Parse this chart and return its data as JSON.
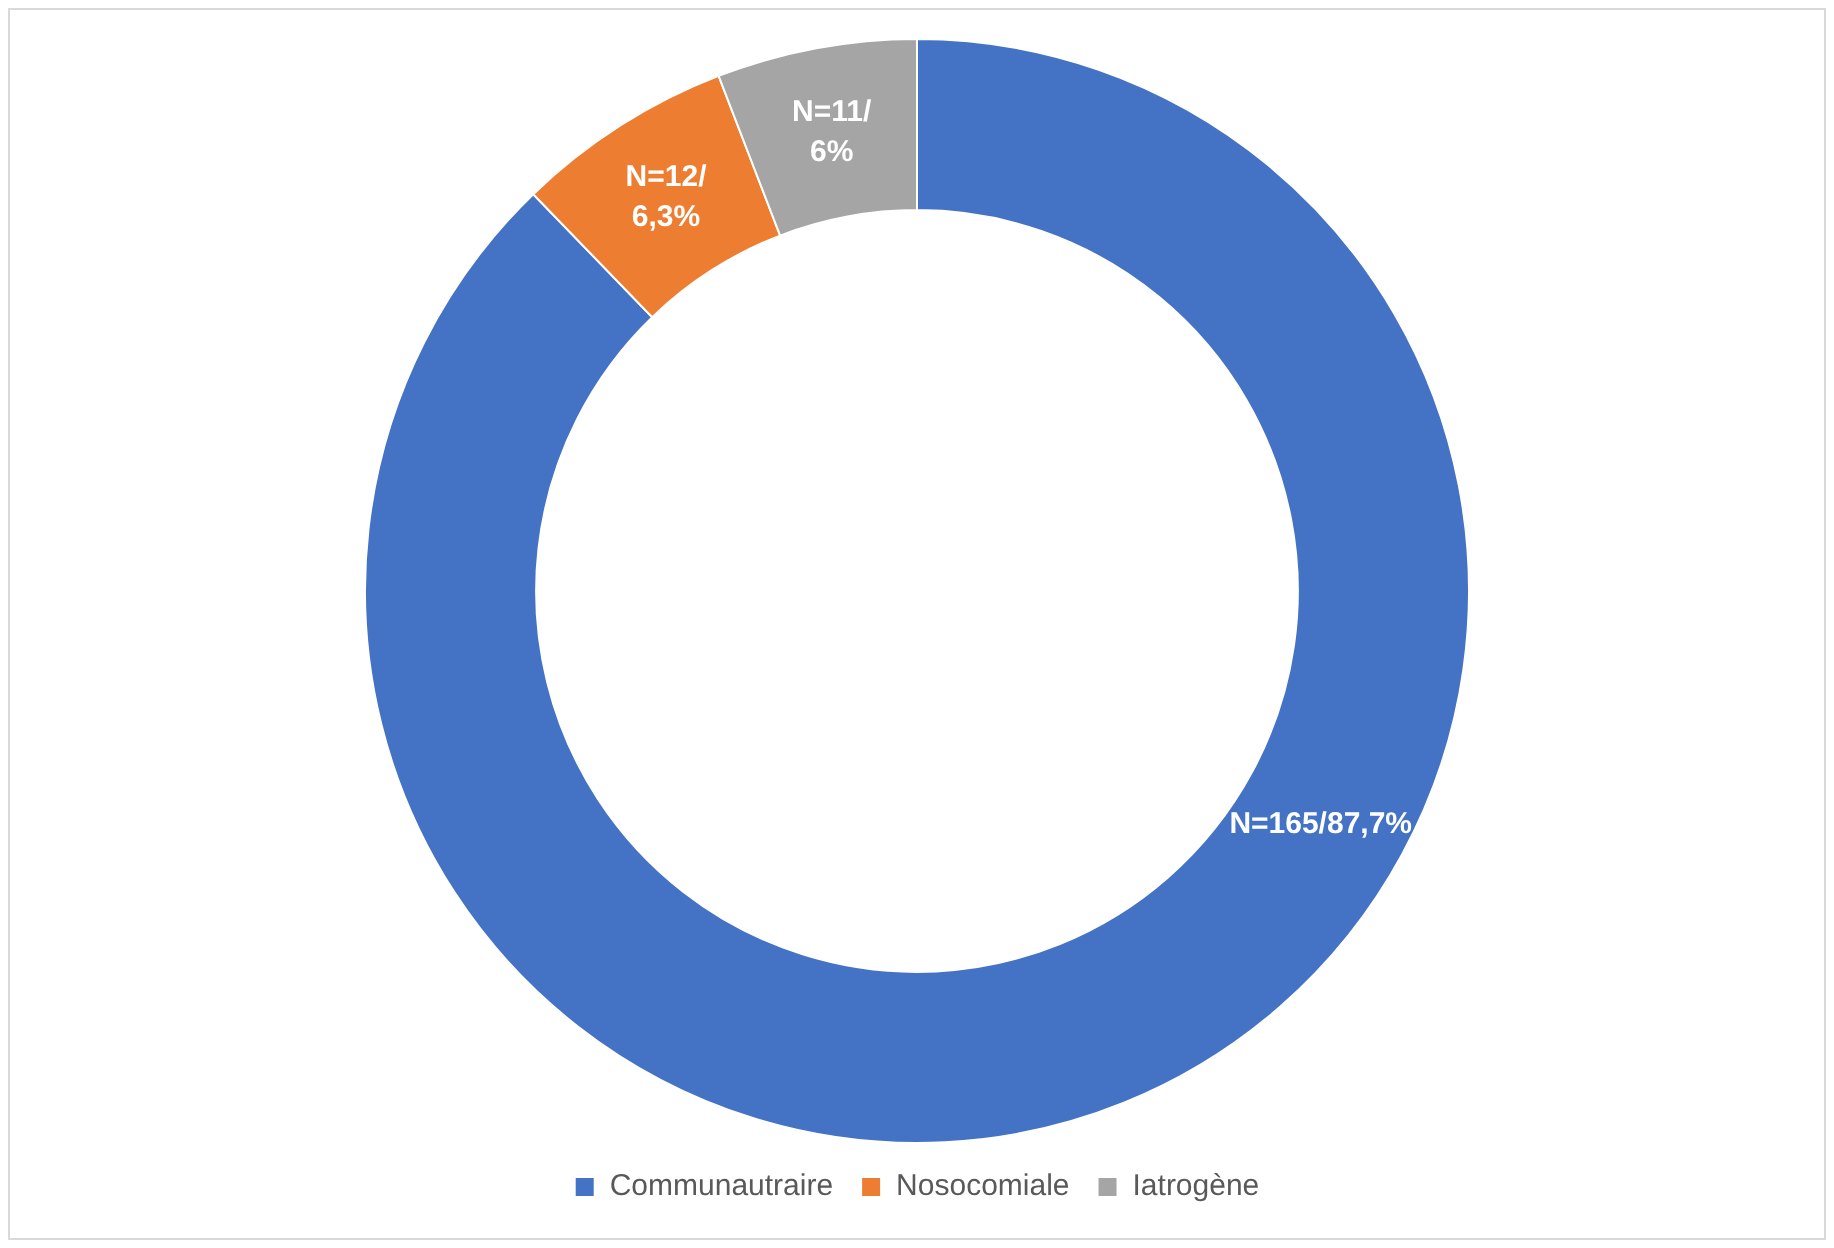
{
  "chart_data": {
    "type": "donut",
    "categories": [
      "Communautraire",
      "Nosocomiale",
      "Iatrogène"
    ],
    "values": [
      165,
      12,
      11
    ],
    "colors": [
      "#4472c4",
      "#ed7d31",
      "#a5a5a5"
    ],
    "value_labels": [
      "N=165/87,7%",
      "N=12/6,3%",
      "N=11/6%"
    ],
    "legend": "bottom"
  }
}
